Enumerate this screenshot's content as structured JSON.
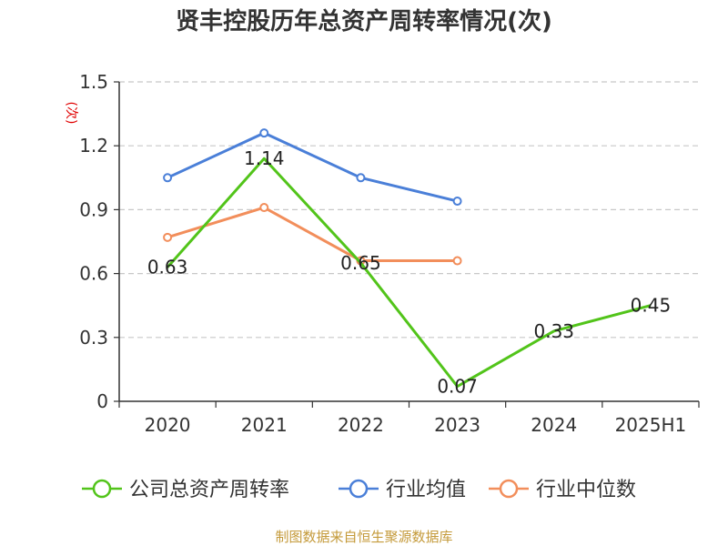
{
  "chart_data": {
    "type": "line",
    "title": "贤丰控股历年总资产周转率情况(次)",
    "ylabel": "(次)",
    "categories": [
      "2020",
      "2021",
      "2022",
      "2023",
      "2024",
      "2025H1"
    ],
    "ylim": [
      0,
      1.5
    ],
    "yticks": [
      "0",
      "0.3",
      "0.6",
      "0.9",
      "1.2",
      "1.5"
    ],
    "ytick_values": [
      0,
      0.3,
      0.6,
      0.9,
      1.2,
      1.5
    ],
    "grid": true,
    "legend_position": "bottom",
    "series": [
      {
        "name": "公司总资产周转率",
        "color": "#52c41a",
        "values": [
          0.63,
          1.14,
          0.65,
          0.07,
          0.33,
          0.45
        ],
        "labels": [
          "0.63",
          "1.14",
          "0.65",
          "0.07",
          "0.33",
          "0.45"
        ],
        "markers": false
      },
      {
        "name": "行业均值",
        "color": "#4a7fd8",
        "values": [
          1.05,
          1.26,
          1.05,
          0.94,
          null,
          null
        ],
        "markers": true
      },
      {
        "name": "行业中位数",
        "color": "#f28e5b",
        "values": [
          0.77,
          0.91,
          0.66,
          0.66,
          null,
          null
        ],
        "markers": true
      }
    ]
  },
  "source": "制图数据来自恒生聚源数据库"
}
